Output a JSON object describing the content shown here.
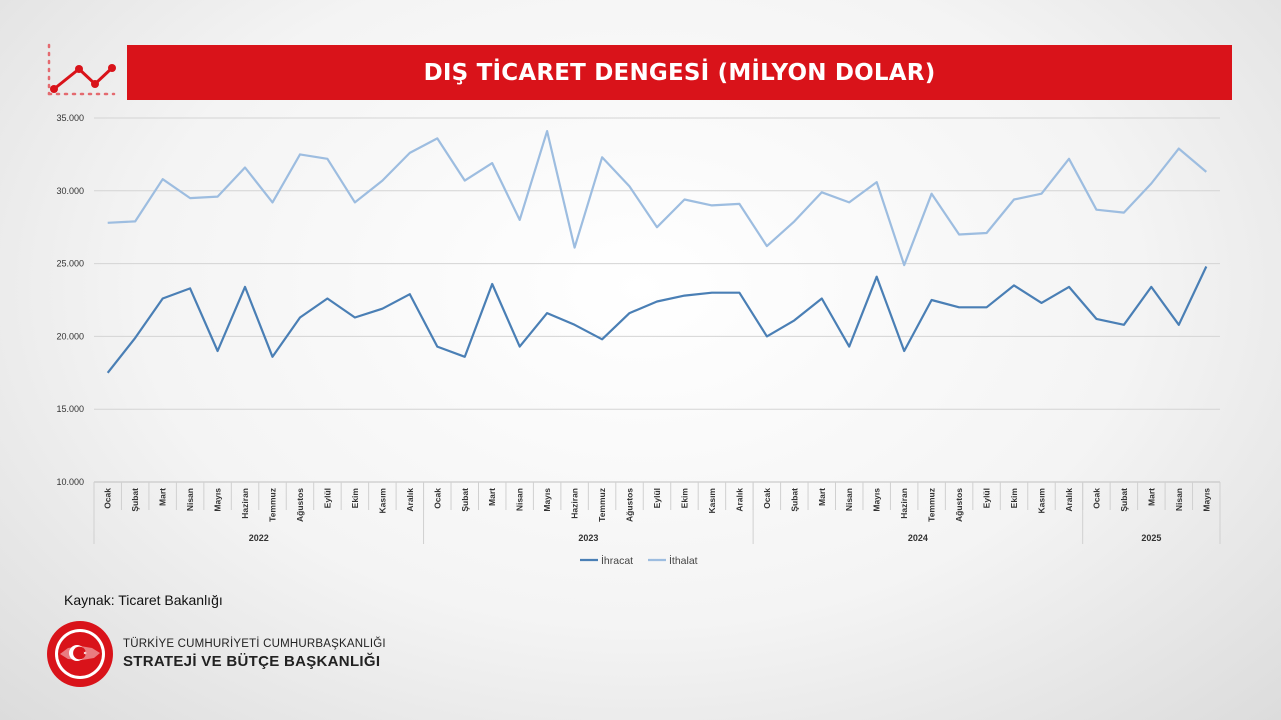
{
  "title": "DIŞ TİCARET DENGESİ (MİLYON DOLAR)",
  "source": "Kaynak: Ticaret Bakanlığı",
  "org": {
    "line1": "TÜRKİYE CUMHURİYETİ CUMHURBAŞKANLIĞI",
    "line2": "STRATEJİ VE BÜTÇE BAŞKANLIĞI",
    "seal_text": "T.C. CUMHURBAŞKANLIĞI STRATEJİ VE BÜTÇE BAŞKANLIĞI"
  },
  "colors": {
    "accent": "#d9131a",
    "ihracat": "#4a7fb5",
    "ithalat": "#9dbde0"
  },
  "icons": {
    "header": "line-chart-icon",
    "footer": "turkish-seal-icon"
  },
  "chart_data": {
    "type": "line",
    "title": "DIŞ TİCARET DENGESİ (MİLYON DOLAR)",
    "ylim": [
      10000,
      35000
    ],
    "yticks": [
      "10.000",
      "15.000",
      "20.000",
      "25.000",
      "30.000",
      "35.000"
    ],
    "grid": true,
    "legend": "bottom",
    "categories": [
      "Ocak",
      "Şubat",
      "Mart",
      "Nisan",
      "Mayıs",
      "Haziran",
      "Temmuz",
      "Ağustos",
      "Eylül",
      "Ekim",
      "Kasım",
      "Aralık",
      "Ocak",
      "Şubat",
      "Mart",
      "Nisan",
      "Mayıs",
      "Haziran",
      "Temmuz",
      "Ağustos",
      "Eylül",
      "Ekim",
      "Kasım",
      "Aralık",
      "Ocak",
      "Şubat",
      "Mart",
      "Nisan",
      "Mayıs",
      "Haziran",
      "Temmuz",
      "Ağustos",
      "Eylül",
      "Ekim",
      "Kasım",
      "Aralık",
      "Ocak",
      "Şubat",
      "Mart",
      "Nisan",
      "Mayıs"
    ],
    "years": [
      {
        "label": "2022",
        "count": 12
      },
      {
        "label": "2023",
        "count": 12
      },
      {
        "label": "2024",
        "count": 12
      },
      {
        "label": "2025",
        "count": 5
      }
    ],
    "series": [
      {
        "name": "İhracat",
        "values": [
          17500,
          19900,
          22600,
          23300,
          19000,
          23400,
          18600,
          21300,
          22600,
          21300,
          21900,
          22900,
          19300,
          18600,
          23600,
          19300,
          21600,
          20800,
          19800,
          21600,
          22400,
          22800,
          23000,
          23000,
          20000,
          21100,
          22600,
          19300,
          24100,
          19000,
          22500,
          22000,
          22000,
          23500,
          22300,
          23400,
          21200,
          20800,
          23400,
          20800,
          24800
        ]
      },
      {
        "name": "İthalat",
        "values": [
          27800,
          27900,
          30800,
          29500,
          29600,
          31600,
          29200,
          32500,
          32200,
          29200,
          30700,
          32600,
          33600,
          30700,
          31900,
          28000,
          34100,
          26100,
          32300,
          30300,
          27500,
          29400,
          29000,
          29100,
          26200,
          27900,
          29900,
          29200,
          30600,
          24900,
          29800,
          27000,
          27100,
          29400,
          29800,
          32200,
          28700,
          28500,
          30500,
          32900,
          31300
        ]
      }
    ]
  }
}
